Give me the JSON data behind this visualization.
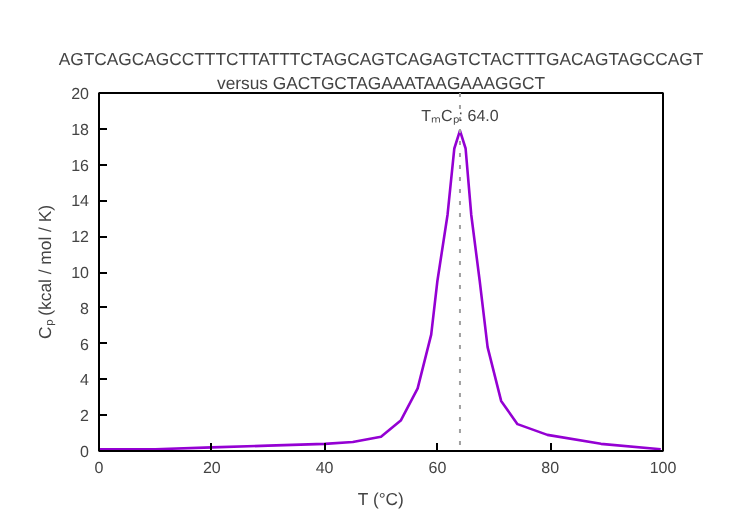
{
  "chart_data": {
    "type": "line",
    "title": "AGTCAGCAGCCTTTCTTATTTCTAGCAGTCAGAGTCTACTTTGACAGTAGCCAGT",
    "subtitle": "versus GACTGCTAGAAATAAGAAAGGCT",
    "xlabel": "T (°C)",
    "ylabel": "Cₚ (kcal / mol / K)",
    "x": [
      0,
      10,
      20,
      30,
      40,
      45,
      50,
      53.5,
      56.5,
      58.9,
      60,
      61.8,
      63,
      64,
      65,
      66,
      67.5,
      68.9,
      71.3,
      74.2,
      79.5,
      89,
      99.6
    ],
    "series": [
      {
        "color": "#9400d3",
        "values": [
          0.1,
          0.1,
          0.2,
          0.3,
          0.4,
          0.5,
          0.8,
          1.7,
          3.5,
          6.5,
          9.5,
          13.2,
          16.9,
          17.9,
          16.9,
          13.2,
          9.5,
          5.8,
          2.8,
          1.5,
          0.9,
          0.4,
          0.1
        ]
      }
    ],
    "xlim": [
      0,
      100
    ],
    "ylim": [
      0,
      20
    ],
    "xticks": [
      0,
      20,
      40,
      60,
      80,
      100
    ],
    "yticks": [
      0,
      2,
      4,
      6,
      8,
      10,
      12,
      14,
      16,
      18,
      20
    ],
    "ref_lines": [
      {
        "axis": "x",
        "value": 64,
        "color": "#a0a0a0",
        "line_style": "dotted"
      }
    ],
    "annotations": [
      {
        "text": "TₘCₚ: 64.0",
        "x": 64,
        "y": 17.9
      }
    ],
    "grid": false,
    "marker": "none",
    "line_style": "solid"
  }
}
